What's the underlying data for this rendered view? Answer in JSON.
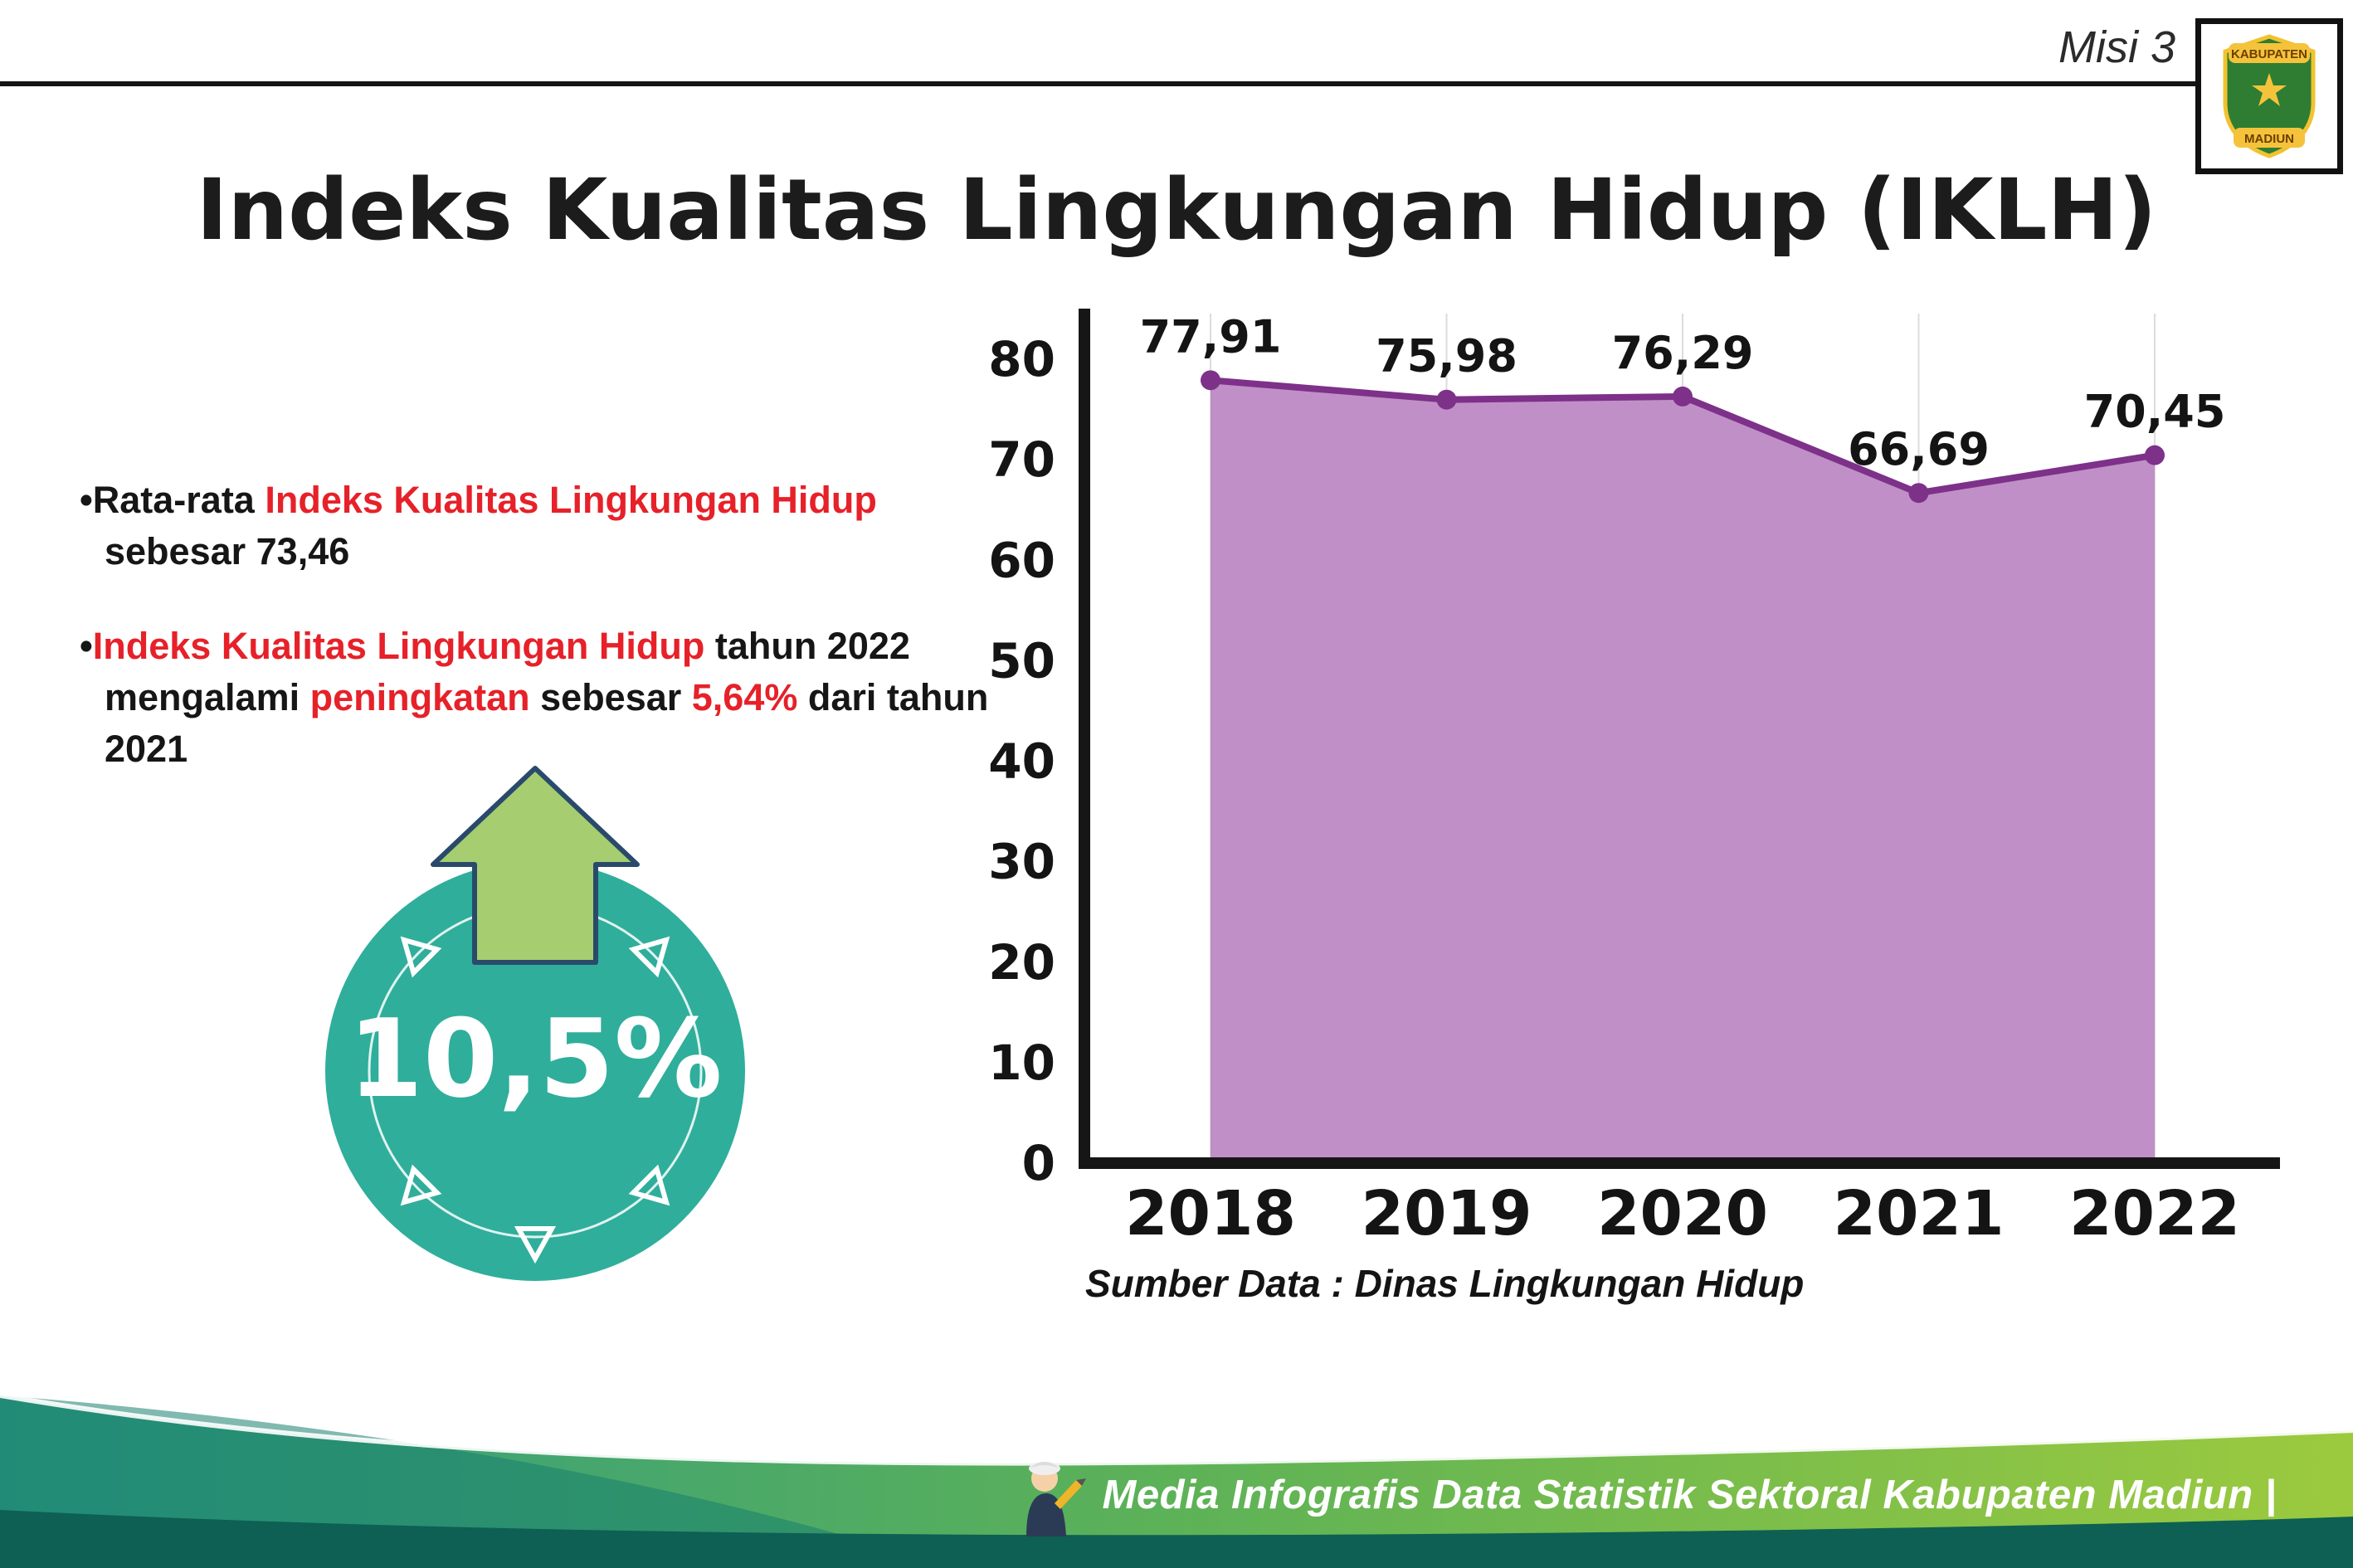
{
  "header": {
    "misi_label": "Misi 3",
    "title": "Indeks Kualitas Lingkungan Hidup (IKLH)",
    "logo": {
      "top_text": "KABUPATEN",
      "bottom_text": "MADIUN"
    }
  },
  "bullets": {
    "marker": "•",
    "b1_p1": "Rata-rata ",
    "b1_p2": "Indeks Kualitas Lingkungan Hidup",
    "b1_p3": " sebesar 73,46",
    "b2_p1": "Indeks Kualitas Lingkungan Hidup",
    "b2_p2": " tahun 2022 mengalami ",
    "b2_p3": "peningkatan",
    "b2_p4": " sebesar ",
    "b2_p5": "5,64%",
    "b2_p6": " dari tahun 2021"
  },
  "badge": {
    "value": "10,5%"
  },
  "chart_data": {
    "type": "area",
    "title": "Indeks Kualitas Lingkungan Hidup (IKLH)",
    "categories": [
      "2018",
      "2019",
      "2020",
      "2021",
      "2022"
    ],
    "values": [
      77.91,
      75.98,
      76.29,
      66.69,
      70.45
    ],
    "value_labels": [
      "77,91",
      "75,98",
      "76,29",
      "66,69",
      "70,45"
    ],
    "ylim": [
      0,
      80
    ],
    "yticks": [
      0,
      10,
      20,
      30,
      40,
      50,
      60,
      70,
      80
    ],
    "grid": "vertical-light",
    "legend": "none",
    "fill_color": "#c08fc7",
    "line_color": "#7d3189",
    "source_note": "Sumber Data : Dinas Lingkungan Hidup"
  },
  "footer": {
    "credit": "Media Infografis Data Statistik Sektoral Kabupaten Madiun |"
  },
  "colors": {
    "accent_red": "#e62129",
    "badge_teal": "#2fae9b",
    "arrow_green": "#a6cd70",
    "footer_dark": "#0d6053"
  }
}
